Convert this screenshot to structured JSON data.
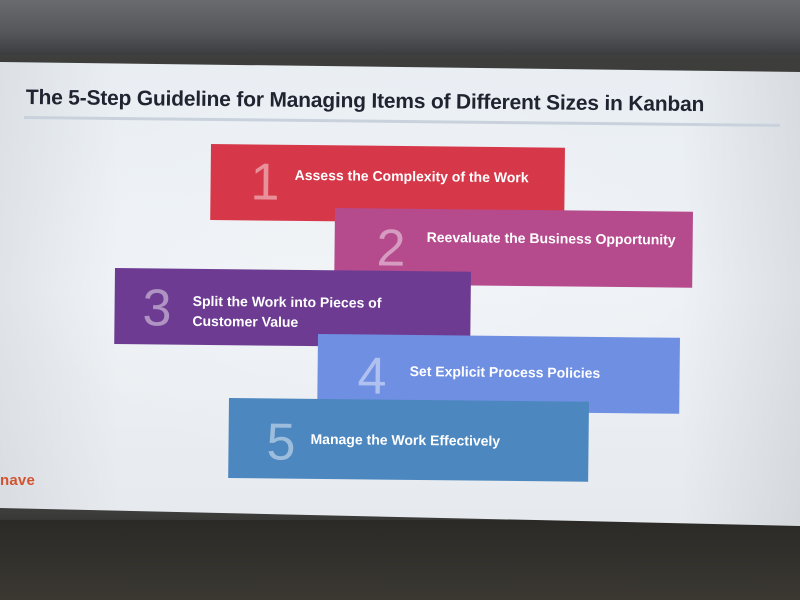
{
  "slide": {
    "title": "The 5-Step Guideline for Managing Items of Different Sizes in Kanban",
    "logo_text": "nave",
    "steps": [
      {
        "number": "1",
        "text": "Assess the Complexity of the Work",
        "color": "#d73849"
      },
      {
        "number": "2",
        "text": "Reevaluate the Business Opportunity",
        "color": "#b54a8d"
      },
      {
        "number": "3",
        "text": "Split the Work into Pieces of Customer Value",
        "color": "#6d3c92"
      },
      {
        "number": "4",
        "text": "Set Explicit Process Policies",
        "color": "#6f8fe3"
      },
      {
        "number": "5",
        "text": "Manage the Work Effectively",
        "color": "#4c87bf"
      }
    ]
  }
}
